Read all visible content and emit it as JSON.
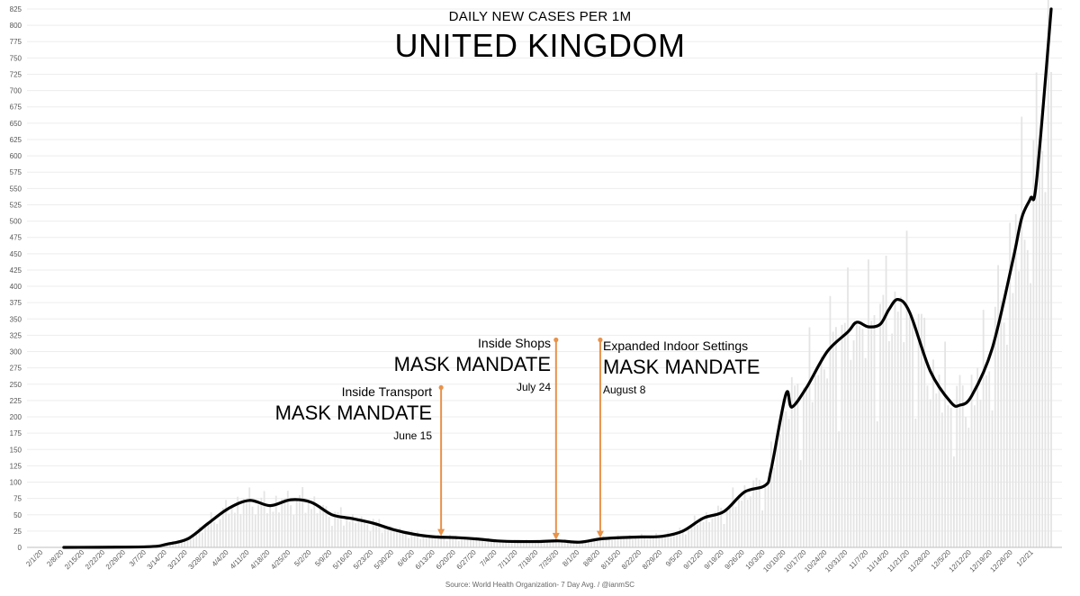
{
  "header": {
    "subtitle": "DAILY NEW CASES PER 1M",
    "title": "UNITED KINGDOM"
  },
  "source": "Source: World Health Organization- 7 Day Avg. / @ianmSC",
  "annotations": [
    {
      "label": "Inside Transport",
      "mandate": "MASK MANDATE",
      "date": "June 15",
      "x": "2020-06-15",
      "y_top": 245
    },
    {
      "label": "Inside Shops",
      "mandate": "MASK MANDATE",
      "date": "July 24",
      "x": "2020-07-24",
      "y_top": 318
    },
    {
      "label": "Expanded Indoor Settings",
      "mandate": "MASK MANDATE",
      "date": "August 8",
      "x": "2020-08-08",
      "y_top": 318
    }
  ],
  "colors": {
    "line": "#000000",
    "daily_bars": "#e4e4e4",
    "gridlines": "#ededed",
    "annotation": "#e8924a"
  },
  "chart_data": {
    "type": "line",
    "title": "UNITED KINGDOM",
    "subtitle": "DAILY NEW CASES PER 1M",
    "ylim": [
      0,
      825
    ],
    "y_ticks": [
      0,
      25,
      50,
      75,
      100,
      125,
      150,
      175,
      200,
      225,
      250,
      275,
      300,
      325,
      350,
      375,
      400,
      425,
      450,
      475,
      500,
      525,
      550,
      575,
      600,
      625,
      650,
      675,
      700,
      725,
      750,
      775,
      800,
      825
    ],
    "x_range": [
      "2020-02-01",
      "2021-01-08"
    ],
    "x_tick_labels": [
      "2/1/20",
      "2/8/20",
      "2/15/20",
      "2/22/20",
      "2/29/20",
      "3/7/20",
      "3/14/20",
      "3/21/20",
      "3/28/20",
      "4/4/20",
      "4/11/20",
      "4/18/20",
      "4/25/20",
      "5/2/20",
      "5/9/20",
      "5/16/20",
      "5/23/20",
      "5/30/20",
      "6/6/20",
      "6/13/20",
      "6/20/20",
      "6/27/20",
      "7/4/20",
      "7/11/20",
      "7/18/20",
      "7/25/20",
      "8/1/20",
      "8/8/20",
      "8/15/20",
      "8/22/20",
      "8/29/20",
      "9/5/20",
      "9/12/20",
      "9/19/20",
      "9/26/20",
      "10/3/20",
      "10/10/20",
      "10/17/20",
      "10/24/20",
      "10/31/20",
      "11/7/20",
      "11/14/20",
      "11/21/20",
      "11/28/20",
      "12/5/20",
      "12/12/20",
      "12/19/20",
      "12/26/20",
      "1/2/21"
    ],
    "grid": true,
    "legend": "none",
    "series": [
      {
        "values": [
          [
            "2020-02-08",
            0
          ],
          [
            "2020-03-07",
            1
          ],
          [
            "2020-03-14",
            5
          ],
          [
            "2020-03-21",
            13
          ],
          [
            "2020-03-28",
            37
          ],
          [
            "2020-04-04",
            60
          ],
          [
            "2020-04-11",
            72
          ],
          [
            "2020-04-18",
            64
          ],
          [
            "2020-04-25",
            73
          ],
          [
            "2020-05-02",
            69
          ],
          [
            "2020-05-09",
            50
          ],
          [
            "2020-05-16",
            44
          ],
          [
            "2020-05-23",
            37
          ],
          [
            "2020-05-30",
            27
          ],
          [
            "2020-06-06",
            20
          ],
          [
            "2020-06-13",
            16
          ],
          [
            "2020-06-20",
            15
          ],
          [
            "2020-06-27",
            13
          ],
          [
            "2020-07-04",
            10
          ],
          [
            "2020-07-11",
            9
          ],
          [
            "2020-07-18",
            9
          ],
          [
            "2020-07-25",
            10
          ],
          [
            "2020-08-01",
            8
          ],
          [
            "2020-08-08",
            13
          ],
          [
            "2020-08-15",
            15
          ],
          [
            "2020-08-22",
            16
          ],
          [
            "2020-08-29",
            17
          ],
          [
            "2020-09-05",
            25
          ],
          [
            "2020-09-12",
            45
          ],
          [
            "2020-09-19",
            55
          ],
          [
            "2020-09-26",
            85
          ],
          [
            "2020-10-03",
            95
          ],
          [
            "2020-10-05",
            120
          ],
          [
            "2020-10-10",
            235
          ],
          [
            "2020-10-12",
            215
          ],
          [
            "2020-10-17",
            245
          ],
          [
            "2020-10-24",
            300
          ],
          [
            "2020-10-31",
            330
          ],
          [
            "2020-11-03",
            345
          ],
          [
            "2020-11-07",
            338
          ],
          [
            "2020-11-11",
            342
          ],
          [
            "2020-11-14",
            365
          ],
          [
            "2020-11-17",
            380
          ],
          [
            "2020-11-21",
            360
          ],
          [
            "2020-11-28",
            270
          ],
          [
            "2020-12-05",
            222
          ],
          [
            "2020-12-08",
            218
          ],
          [
            "2020-12-12",
            232
          ],
          [
            "2020-12-19",
            305
          ],
          [
            "2020-12-26",
            440
          ],
          [
            "2020-12-29",
            505
          ],
          [
            "2021-01-01",
            535
          ],
          [
            "2021-01-03",
            560
          ],
          [
            "2021-01-08",
            825
          ]
        ]
      }
    ]
  }
}
